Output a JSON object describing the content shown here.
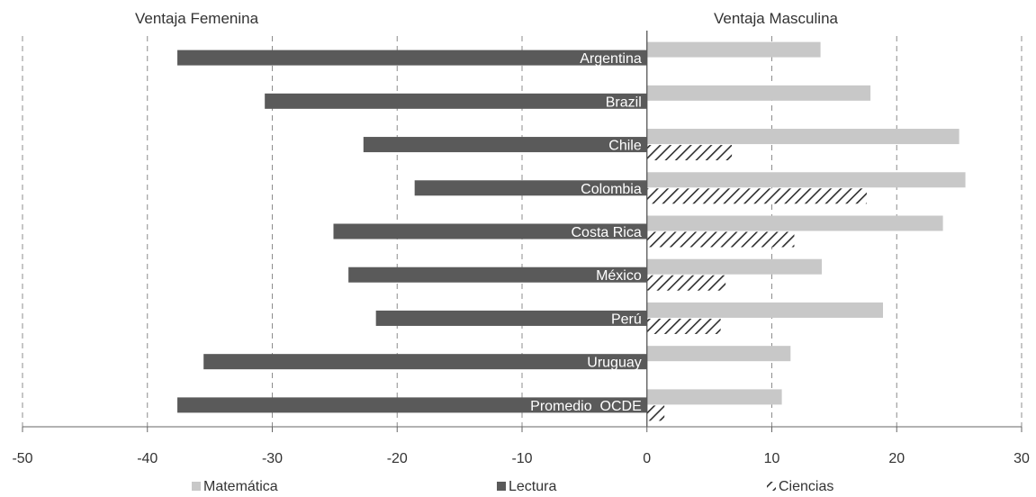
{
  "chart_data": {
    "type": "bar",
    "orientation": "horizontal",
    "header_left": "Ventaja Femenina",
    "header_right": "Ventaja Masculina",
    "categories": [
      "Argentina",
      "Brazil",
      "Chile",
      "Colombia",
      "Costa Rica",
      "México",
      "Perú",
      "Uruguay",
      "Promedio  OCDE"
    ],
    "series": [
      {
        "name": "Matemática",
        "color": "#c8c8c8",
        "pattern": "solid",
        "values": [
          13.9,
          17.9,
          25.0,
          25.5,
          23.7,
          14.0,
          18.9,
          11.5,
          10.8
        ]
      },
      {
        "name": "Lectura",
        "color": "#5a5a5a",
        "pattern": "solid",
        "values": [
          -37.6,
          -30.6,
          -22.7,
          -18.6,
          -25.1,
          -23.9,
          -21.7,
          -35.5,
          -37.6
        ]
      },
      {
        "name": "Ciencias",
        "color": "#333333",
        "pattern": "diagonal-hatch",
        "values": [
          null,
          null,
          6.8,
          17.6,
          11.8,
          6.3,
          5.9,
          null,
          1.4
        ]
      }
    ],
    "xlim": [
      -50,
      30
    ],
    "xticks": [
      -50,
      -40,
      -30,
      -20,
      -10,
      0,
      10,
      20,
      30
    ],
    "xtick_labels": [
      "-50",
      "-40",
      "-30",
      "-20",
      "-10",
      "0",
      "10",
      "20",
      "30"
    ],
    "grid": "vertical dashed",
    "legend_position": "bottom"
  }
}
